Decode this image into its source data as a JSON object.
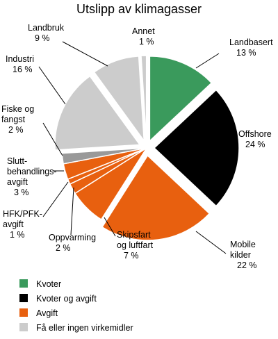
{
  "chart_data": {
    "type": "pie",
    "title": "Utslipp av klimagasser",
    "unit": "%",
    "slices": [
      {
        "name": "Landbasert",
        "value": 13,
        "label_lines": [
          "Landbasert",
          "13 %"
        ],
        "category": 0,
        "exploded": true
      },
      {
        "name": "Offshore",
        "value": 24,
        "label_lines": [
          "Offshore",
          "24 %"
        ],
        "category": 1,
        "exploded": true
      },
      {
        "name": "Mobile kilder",
        "value": 22,
        "label_lines": [
          "Mobile",
          "kilder",
          "22 %"
        ],
        "category": 2,
        "exploded": true
      },
      {
        "name": "Skipsfart og luftfart",
        "value": 7,
        "label_lines": [
          "Skipsfart",
          "og luftfart",
          "7 %"
        ],
        "category": 2,
        "exploded": false
      },
      {
        "name": "Oppvarming",
        "value": 2,
        "label_lines": [
          "Oppvarming",
          "2 %"
        ],
        "category": 2,
        "exploded": false
      },
      {
        "name": "HFK/PFK-avgift",
        "value": 1,
        "label_lines": [
          "HFK/PFK-",
          "avgift",
          "1 %"
        ],
        "category": 2,
        "exploded": false
      },
      {
        "name": "Sluttbehandlingsavgift",
        "value": 3,
        "label_lines": [
          "Slutt-",
          "behandlings-",
          "avgift",
          "3 %"
        ],
        "category": 2,
        "exploded": false
      },
      {
        "name": "Fiske og fangst",
        "value": 2,
        "label_lines": [
          "Fiske og",
          "fangst",
          "2 %"
        ],
        "category": 4,
        "exploded": false
      },
      {
        "name": "Industri",
        "value": 16,
        "label_lines": [
          "Industri",
          "16 %"
        ],
        "category": 3,
        "exploded": true
      },
      {
        "name": "Landbruk",
        "value": 9,
        "label_lines": [
          "Landbruk",
          "9 %"
        ],
        "category": 3,
        "exploded": true
      },
      {
        "name": "Annet",
        "value": 1,
        "label_lines": [
          "Annet",
          "1 %"
        ],
        "category": 3,
        "exploded": true
      }
    ],
    "legend": [
      {
        "label": "Kvoter",
        "color": "#3a9a5c"
      },
      {
        "label": "Kvoter og avgift",
        "color": "#000000"
      },
      {
        "label": "Avgift",
        "color": "#e8600f"
      },
      {
        "label": "Få eller ingen virkemidler",
        "color": "#cccccc"
      }
    ],
    "extra_colors": [
      "#999999"
    ],
    "legend_position": "bottom-left"
  }
}
